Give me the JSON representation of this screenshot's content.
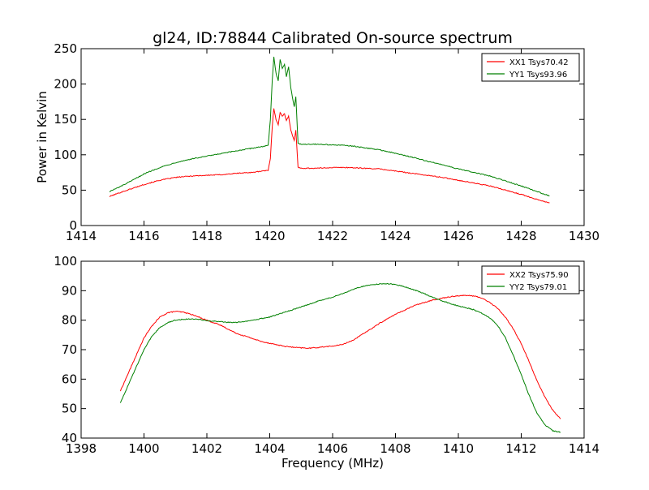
{
  "chart_data": [
    {
      "type": "line",
      "title": "gl24, ID:78844 Calibrated On-source spectrum",
      "xlabel": "",
      "ylabel": "Power in Kelvin",
      "xlim": [
        1414,
        1430
      ],
      "ylim": [
        0,
        250
      ],
      "xticks": [
        1414,
        1416,
        1418,
        1420,
        1422,
        1424,
        1426,
        1428,
        1430
      ],
      "yticks": [
        0,
        50,
        100,
        150,
        200,
        250
      ],
      "legend": "top-right",
      "grid": false,
      "series": [
        {
          "name": "XX1 Tsys70.42",
          "color": "#ff0000",
          "x": [
            1414.9,
            1415.2,
            1415.6,
            1416.0,
            1416.5,
            1417.0,
            1417.5,
            1418.0,
            1418.5,
            1419.0,
            1419.4,
            1419.8,
            1419.95,
            1420.02,
            1420.08,
            1420.13,
            1420.2,
            1420.27,
            1420.33,
            1420.4,
            1420.47,
            1420.53,
            1420.6,
            1420.67,
            1420.72,
            1420.78,
            1420.83,
            1420.9,
            1421.0,
            1421.5,
            1422.0,
            1422.5,
            1423.0,
            1423.5,
            1424.0,
            1424.5,
            1425.0,
            1425.5,
            1426.0,
            1426.5,
            1427.0,
            1427.5,
            1428.0,
            1428.5,
            1428.9
          ],
          "y": [
            41,
            46,
            52,
            58,
            64,
            68,
            70,
            71,
            72,
            74,
            75,
            77,
            78,
            95,
            140,
            166,
            150,
            142,
            160,
            155,
            158,
            148,
            155,
            135,
            128,
            120,
            135,
            82,
            81,
            81,
            82,
            82,
            81,
            80,
            77,
            74,
            71,
            68,
            64,
            60,
            56,
            50,
            44,
            37,
            32
          ]
        },
        {
          "name": "YY1 Tsys93.96",
          "color": "#008000",
          "x": [
            1414.9,
            1415.2,
            1415.6,
            1416.0,
            1416.5,
            1417.0,
            1417.5,
            1418.0,
            1418.5,
            1419.0,
            1419.4,
            1419.8,
            1419.95,
            1420.02,
            1420.08,
            1420.13,
            1420.2,
            1420.27,
            1420.33,
            1420.4,
            1420.47,
            1420.53,
            1420.6,
            1420.67,
            1420.72,
            1420.78,
            1420.83,
            1420.9,
            1421.0,
            1421.5,
            1422.0,
            1422.5,
            1423.0,
            1423.5,
            1424.0,
            1424.5,
            1425.0,
            1425.5,
            1426.0,
            1426.5,
            1427.0,
            1427.5,
            1428.0,
            1428.5,
            1428.9
          ],
          "y": [
            48,
            54,
            63,
            73,
            82,
            89,
            94,
            98,
            102,
            106,
            109,
            112,
            113,
            150,
            205,
            238,
            215,
            205,
            235,
            222,
            228,
            210,
            225,
            195,
            182,
            168,
            182,
            116,
            115,
            115,
            114,
            113,
            110,
            107,
            102,
            97,
            91,
            86,
            80,
            75,
            70,
            63,
            56,
            48,
            42
          ]
        }
      ]
    },
    {
      "type": "line",
      "title": "",
      "xlabel": "Frequency (MHz)",
      "ylabel": "",
      "xlim": [
        1398,
        1414
      ],
      "ylim": [
        40,
        100
      ],
      "xticks": [
        1398,
        1400,
        1402,
        1404,
        1406,
        1408,
        1410,
        1412,
        1414
      ],
      "yticks": [
        40,
        50,
        60,
        70,
        80,
        90,
        100
      ],
      "legend": "top-right",
      "grid": false,
      "series": [
        {
          "name": "XX2 Tsys75.90",
          "color": "#ff0000",
          "x": [
            1399.25,
            1399.5,
            1399.75,
            1400.0,
            1400.25,
            1400.5,
            1400.75,
            1401.0,
            1401.25,
            1401.5,
            1401.75,
            1402.0,
            1402.25,
            1402.5,
            1402.75,
            1403.0,
            1403.25,
            1403.5,
            1403.75,
            1404.0,
            1404.25,
            1404.5,
            1404.75,
            1405.0,
            1405.25,
            1405.5,
            1405.75,
            1406.0,
            1406.25,
            1406.5,
            1406.75,
            1407.0,
            1407.25,
            1407.5,
            1407.75,
            1408.0,
            1408.25,
            1408.5,
            1408.75,
            1409.0,
            1409.25,
            1409.5,
            1409.75,
            1410.0,
            1410.25,
            1410.5,
            1410.75,
            1411.0,
            1411.25,
            1411.5,
            1411.75,
            1412.0,
            1412.25,
            1412.5,
            1412.75,
            1413.0,
            1413.25
          ],
          "y": [
            56,
            62,
            68,
            74,
            78,
            81,
            82.5,
            83,
            82.7,
            82,
            81,
            80,
            79,
            78,
            76.5,
            75.3,
            74.5,
            73.6,
            72.7,
            72.2,
            71.6,
            71.1,
            70.8,
            70.6,
            70.5,
            70.7,
            71.0,
            71.2,
            71.6,
            72.5,
            73.8,
            75.6,
            77.2,
            79.0,
            80.5,
            82.0,
            83.2,
            84.5,
            85.5,
            86.3,
            87.0,
            87.5,
            88.0,
            88.3,
            88.4,
            88.2,
            87.5,
            86.0,
            84.0,
            81.0,
            77.0,
            72.0,
            66.0,
            59.5,
            54.0,
            49.5,
            46.5
          ]
        },
        {
          "name": "YY2 Tsys79.01",
          "color": "#008000",
          "x": [
            1399.25,
            1399.5,
            1399.75,
            1400.0,
            1400.25,
            1400.5,
            1400.75,
            1401.0,
            1401.25,
            1401.5,
            1401.75,
            1402.0,
            1402.25,
            1402.5,
            1402.75,
            1403.0,
            1403.25,
            1403.5,
            1403.75,
            1404.0,
            1404.25,
            1404.5,
            1404.75,
            1405.0,
            1405.25,
            1405.5,
            1405.75,
            1406.0,
            1406.25,
            1406.5,
            1406.75,
            1407.0,
            1407.25,
            1407.5,
            1407.75,
            1408.0,
            1408.25,
            1408.5,
            1408.75,
            1409.0,
            1409.25,
            1409.5,
            1409.75,
            1410.0,
            1410.25,
            1410.5,
            1410.75,
            1411.0,
            1411.25,
            1411.5,
            1411.75,
            1412.0,
            1412.25,
            1412.5,
            1412.75,
            1413.0,
            1413.25
          ],
          "y": [
            52,
            58,
            64,
            70,
            74.5,
            77.5,
            79.2,
            80,
            80.3,
            80.5,
            80.3,
            79.8,
            79.6,
            79.4,
            79.2,
            79.3,
            79.6,
            80.0,
            80.6,
            81.1,
            81.9,
            82.8,
            83.6,
            84.5,
            85.4,
            86.3,
            87.1,
            87.8,
            88.8,
            89.8,
            90.8,
            91.6,
            92.0,
            92.3,
            92.4,
            92.1,
            91.5,
            90.6,
            89.7,
            88.6,
            87.5,
            86.5,
            85.6,
            84.8,
            84.2,
            83.5,
            82.3,
            80.8,
            78.2,
            74.0,
            68.0,
            61.5,
            54.5,
            48.5,
            44.5,
            42.5,
            42.0
          ]
        }
      ]
    }
  ]
}
